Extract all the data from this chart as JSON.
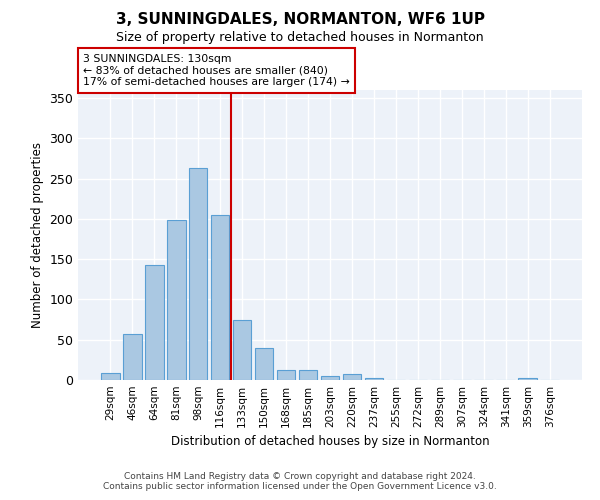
{
  "title": "3, SUNNINGDALES, NORMANTON, WF6 1UP",
  "subtitle": "Size of property relative to detached houses in Normanton",
  "xlabel": "Distribution of detached houses by size in Normanton",
  "ylabel": "Number of detached properties",
  "categories": [
    "29sqm",
    "46sqm",
    "64sqm",
    "81sqm",
    "98sqm",
    "116sqm",
    "133sqm",
    "150sqm",
    "168sqm",
    "185sqm",
    "203sqm",
    "220sqm",
    "237sqm",
    "255sqm",
    "272sqm",
    "289sqm",
    "307sqm",
    "324sqm",
    "341sqm",
    "359sqm",
    "376sqm"
  ],
  "values": [
    9,
    57,
    143,
    199,
    263,
    205,
    75,
    40,
    12,
    12,
    5,
    7,
    3,
    0,
    0,
    0,
    0,
    0,
    0,
    3,
    0
  ],
  "bar_color": "#aac8e2",
  "bar_edge_color": "#5a9fd4",
  "background_color": "#edf2f9",
  "grid_color": "#ffffff",
  "vline_color": "#cc0000",
  "vline_x": 5.5,
  "annotation_text": "3 SUNNINGDALES: 130sqm\n← 83% of detached houses are smaller (840)\n17% of semi-detached houses are larger (174) →",
  "annotation_box_facecolor": "white",
  "annotation_box_edgecolor": "#cc0000",
  "ylim": [
    0,
    360
  ],
  "yticks": [
    0,
    50,
    100,
    150,
    200,
    250,
    300,
    350
  ],
  "footer1": "Contains HM Land Registry data © Crown copyright and database right 2024.",
  "footer2": "Contains public sector information licensed under the Open Government Licence v3.0."
}
